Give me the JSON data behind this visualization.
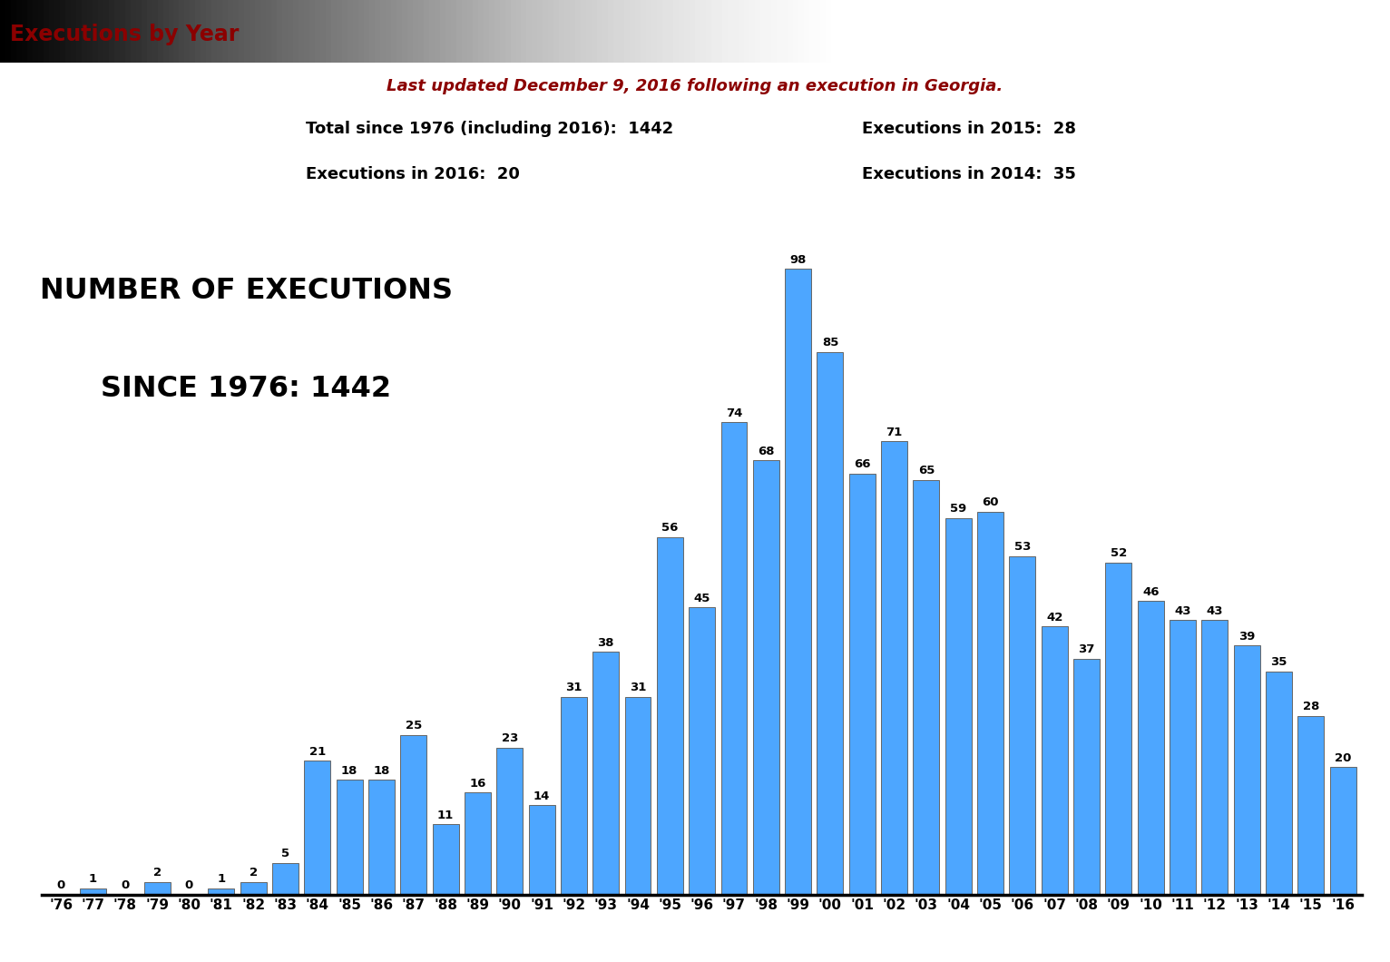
{
  "years": [
    "'76",
    "'77",
    "'78",
    "'79",
    "'80",
    "'81",
    "'82",
    "'83",
    "'84",
    "'85",
    "'86",
    "'87",
    "'88",
    "'89",
    "'90",
    "'91",
    "'92",
    "'93",
    "'94",
    "'95",
    "'96",
    "'97",
    "'98",
    "'99",
    "'00",
    "'01",
    "'02",
    "'03",
    "'04",
    "'05",
    "'06",
    "'07",
    "'08",
    "'09",
    "'10",
    "'11",
    "'12",
    "'13",
    "'14",
    "'15",
    "'16"
  ],
  "values": [
    0,
    1,
    0,
    2,
    0,
    1,
    2,
    5,
    21,
    18,
    18,
    25,
    11,
    16,
    23,
    14,
    31,
    38,
    31,
    56,
    45,
    74,
    68,
    98,
    85,
    66,
    71,
    65,
    59,
    60,
    53,
    42,
    37,
    52,
    46,
    43,
    43,
    39,
    35,
    28,
    20
  ],
  "bar_color": "#4DA6FF",
  "bar_edge_color": "#666666",
  "title_box_text": "Executions by Year",
  "title_box_text_color": "#8B0000",
  "title_box_bg_top": "#C8C8C8",
  "title_box_bg_bot": "#E8E8E8",
  "subtitle_text": "Last updated December 9, 2016 following an execution in Georgia.",
  "subtitle_color": "#8B0000",
  "info_line1_left": "Total since 1976 (including 2016):  1442",
  "info_line2_left": "Executions in 2016:  20",
  "info_line1_right": "Executions in 2015:  28",
  "info_line2_right": "Executions in 2014:  35",
  "info_color": "#000000",
  "big_title_line1": "NUMBER OF EXECUTIONS",
  "big_title_line2": "SINCE 1976: 1442",
  "big_title_color": "#000000",
  "value_label_color": "#000000",
  "background_color": "#FFFFFF",
  "ylim": [
    0,
    110
  ]
}
